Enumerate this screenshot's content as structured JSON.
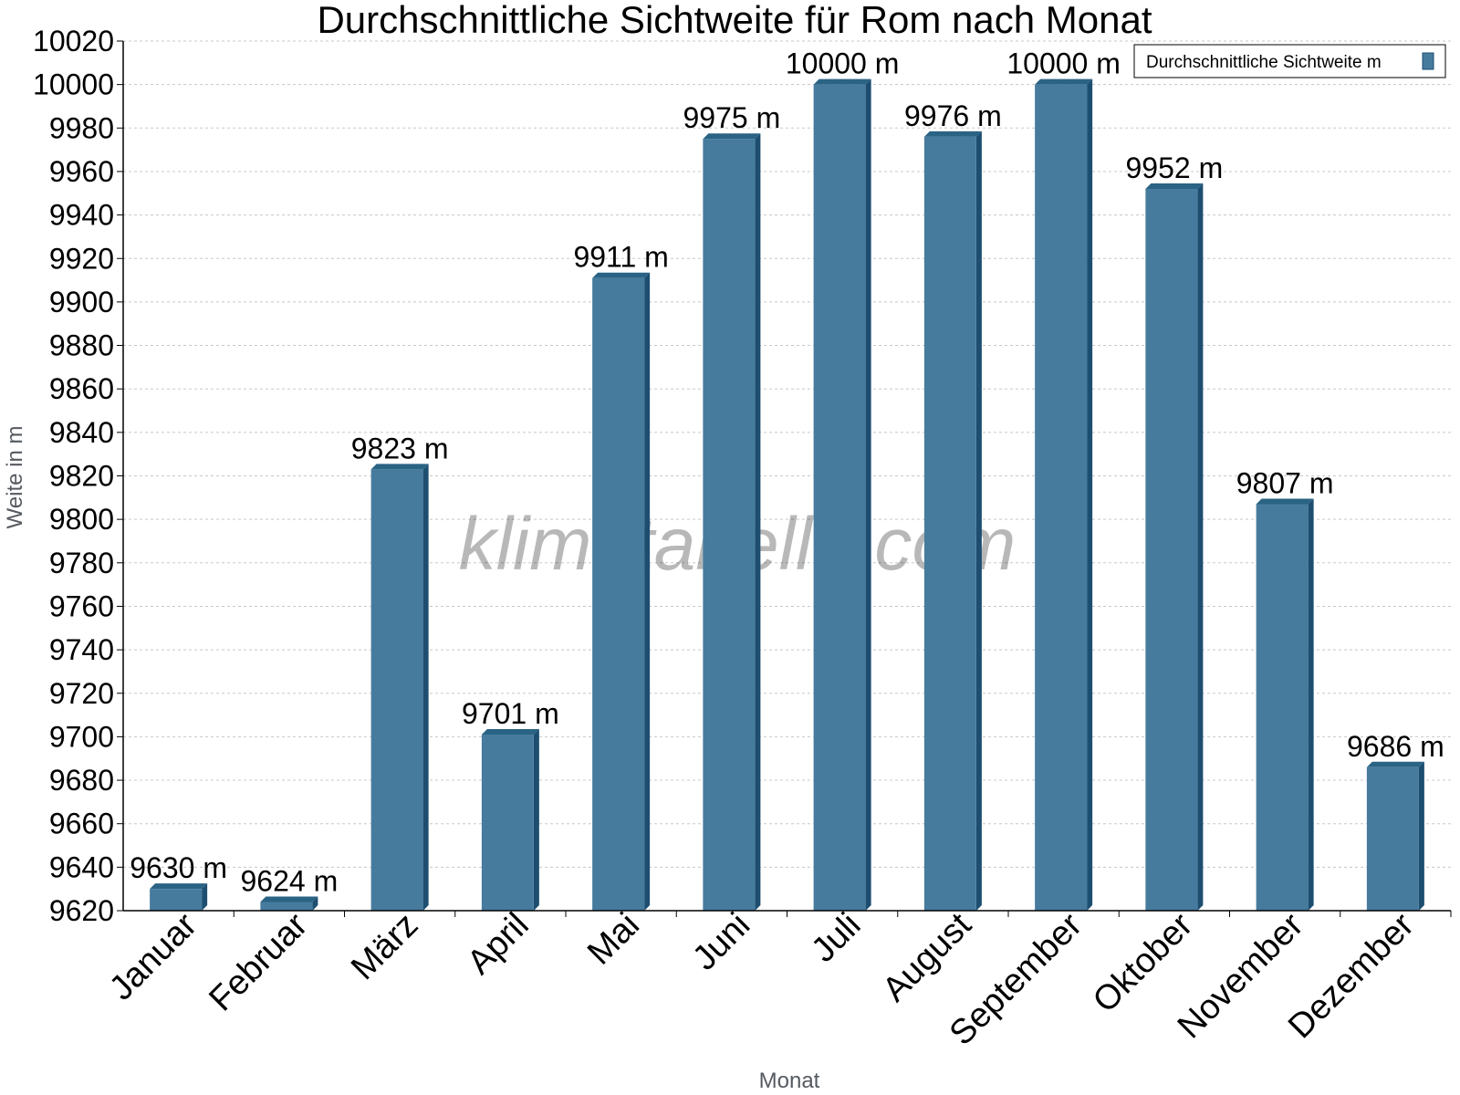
{
  "chart_data": {
    "type": "bar",
    "title": "Durchschnittliche Sichtweite für Rom nach Monat",
    "xlabel": "Monat",
    "ylabel": "Weite in m",
    "categories": [
      "Januar",
      "Februar",
      "März",
      "April",
      "Mai",
      "Juni",
      "Juli",
      "August",
      "September",
      "Oktober",
      "November",
      "Dezember"
    ],
    "series": [
      {
        "name": "Durchschnittliche Sichtweite m",
        "values": [
          9630,
          9624,
          9823,
          9701,
          9911,
          9975,
          10000,
          9976,
          10000,
          9952,
          9807,
          9686
        ],
        "labels": [
          "9630 m",
          "9624 m",
          "9823 m",
          "9701 m",
          "9911 m",
          "9975 m",
          "10000 m",
          "9976 m",
          "10000 m",
          "9952 m",
          "9807 m",
          "9686 m"
        ]
      }
    ],
    "ylim": [
      9620,
      10020
    ],
    "yticks": [
      "9620",
      "9640",
      "9660",
      "9680",
      "9700",
      "9720",
      "9740",
      "9760",
      "9780",
      "9800",
      "9820",
      "9840",
      "9860",
      "9880",
      "9900",
      "9920",
      "9940",
      "9960",
      "9980",
      "10000",
      "10020"
    ],
    "grid": true,
    "legend_position": "top-right",
    "watermark": "klimatabelle.com",
    "colors": {
      "bar_front": "#467b9e",
      "bar_side": "#1d4e70",
      "bar_top": "#2b6384",
      "grid": "#c8c8c8",
      "axis": "#000000"
    }
  }
}
